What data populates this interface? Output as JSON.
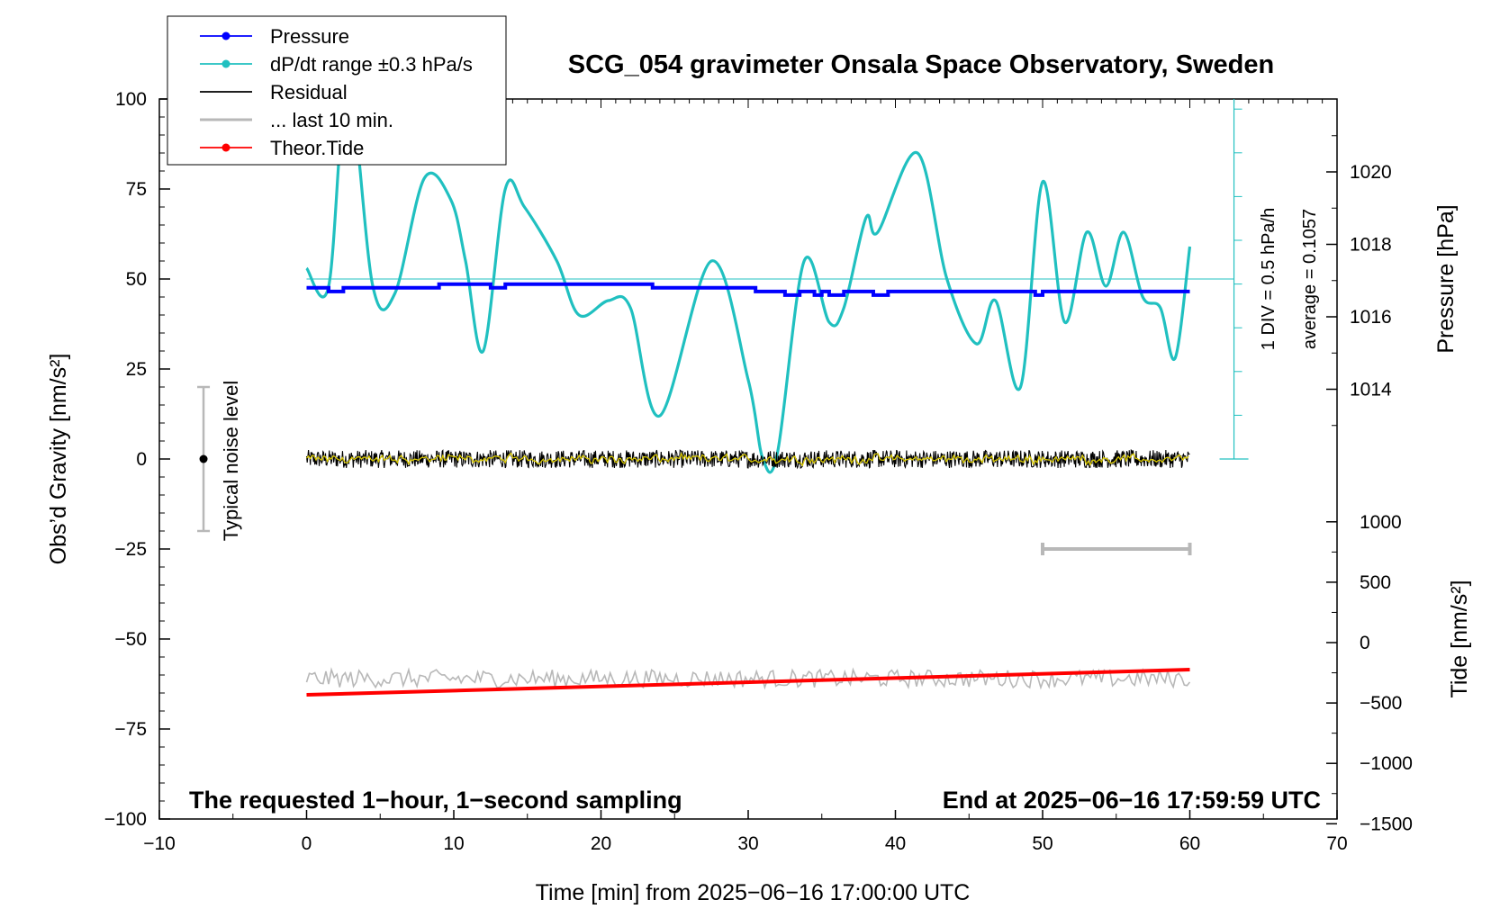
{
  "chart_data": {
    "type": "line",
    "title": "SCG_054 gravimeter Onsala Space Observatory, Sweden",
    "xlabel": "Time [min] from 2025−06−16 17:00:00 UTC",
    "ylabel_left": "Obs’d Gravity [nm/s²]",
    "ylabel_right_pressure": "Pressure [hPa]",
    "ylabel_right_tide": "Tide [nm/s²]",
    "xlim": [
      -10,
      70
    ],
    "ylim_left": [
      -100,
      100
    ],
    "x_ticks": [
      "−10",
      "0",
      "10",
      "20",
      "30",
      "40",
      "50",
      "60",
      "70"
    ],
    "y_ticks_left": [
      "100",
      "75",
      "50",
      "25",
      "0",
      "−25",
      "−50",
      "−75",
      "−100"
    ],
    "pressure_ticks": [
      "1020",
      "1018",
      "1016",
      "1014"
    ],
    "tide_ticks": [
      "1000",
      "500",
      "0",
      "−500",
      "−1000",
      "−1500"
    ],
    "footer_left": "The requested 1−hour, 1−second sampling",
    "footer_right": "End at 2025−06−16 17:59:59 UTC",
    "noise_label": "Typical noise level",
    "dpdt_div_label": "1 DIV = 0.5 hPa/h",
    "dpdt_average_label": "average = 0.1057",
    "legend": [
      {
        "label": "Pressure",
        "color": "#0000ff",
        "marker": true
      },
      {
        "label": "dP/dt range ±0.3 hPa/s",
        "color": "#20c0c0",
        "marker": true
      },
      {
        "label": "Residual",
        "color": "#000000",
        "marker": false
      },
      {
        "label": "... last 10 min.",
        "color": "#b8b8b8",
        "marker": false
      },
      {
        "label": "Theor.Tide",
        "color": "#ff0000",
        "marker": true
      }
    ],
    "colors": {
      "pressure": "#0000ff",
      "dpdt": "#20c0c0",
      "residual": "#000000",
      "residual_filtered": "#d8c800",
      "tide": "#ff0000",
      "noise_gray": "#b8b8b8"
    },
    "series": {
      "pressure_hPa": {
        "name": "Pressure",
        "x": [
          0,
          1.5,
          1.5,
          2.5,
          2.5,
          9,
          9,
          12.5,
          12.5,
          13.5,
          13.5,
          23.5,
          23.5,
          30.5,
          30.5,
          32.5,
          32.5,
          33.5,
          33.5,
          34.5,
          34.5,
          35,
          35,
          35.5,
          35.5,
          36.5,
          36.5,
          38.5,
          38.5,
          39.5,
          39.5,
          40,
          40,
          49.5,
          49.5,
          50,
          50,
          60
        ],
        "y": [
          1016.8,
          1016.8,
          1016.7,
          1016.7,
          1016.8,
          1016.8,
          1016.9,
          1016.9,
          1016.8,
          1016.8,
          1016.9,
          1016.9,
          1016.8,
          1016.8,
          1016.7,
          1016.7,
          1016.6,
          1016.6,
          1016.7,
          1016.7,
          1016.6,
          1016.6,
          1016.7,
          1016.7,
          1016.6,
          1016.6,
          1016.7,
          1016.7,
          1016.6,
          1016.6,
          1016.7,
          1016.7,
          1016.7,
          1016.7,
          1016.6,
          1016.6,
          1016.7,
          1016.7
        ]
      },
      "dpdt_gravity_units": {
        "name": "dP/dt range ±0.3 hPa/s",
        "x": [
          0,
          1.5,
          2.8,
          4.5,
          6,
          8,
          9.8,
          10.8,
          12,
          13.5,
          14.8,
          17,
          18.5,
          20.5,
          22,
          24,
          27.5,
          30,
          31,
          32,
          33.8,
          35.5,
          36.5,
          38,
          38.8,
          41.5,
          43.5,
          45.5,
          46.8,
          48.5,
          50,
          51.5,
          53,
          54.3,
          55.5,
          56.8,
          58,
          59,
          60
        ],
        "y": [
          53,
          48,
          108,
          48,
          46,
          78,
          72,
          55,
          30,
          75,
          70,
          55,
          40,
          44,
          42,
          12,
          55,
          22,
          0,
          2,
          55,
          38,
          42,
          67,
          63,
          85,
          50,
          32,
          44,
          20,
          77,
          38,
          63,
          48,
          63,
          45,
          42,
          28,
          59
        ]
      },
      "residual": {
        "name": "Residual",
        "x_range": [
          0,
          60
        ],
        "center": 0,
        "amplitude": 2.5
      },
      "last_10_min": {
        "name": "... last 10 min.",
        "x_range": [
          0,
          60
        ],
        "center": -61,
        "amplitude": 2.5
      },
      "theor_tide": {
        "name": "Theor.Tide",
        "x": [
          0,
          60
        ],
        "y": [
          -65.5,
          -58.5
        ]
      },
      "noise_bar": {
        "x": -7,
        "y_low": -20,
        "y_high": 20,
        "center": 0
      },
      "span_bar": {
        "x_start": 50,
        "x_end": 60,
        "y": -25
      }
    }
  }
}
